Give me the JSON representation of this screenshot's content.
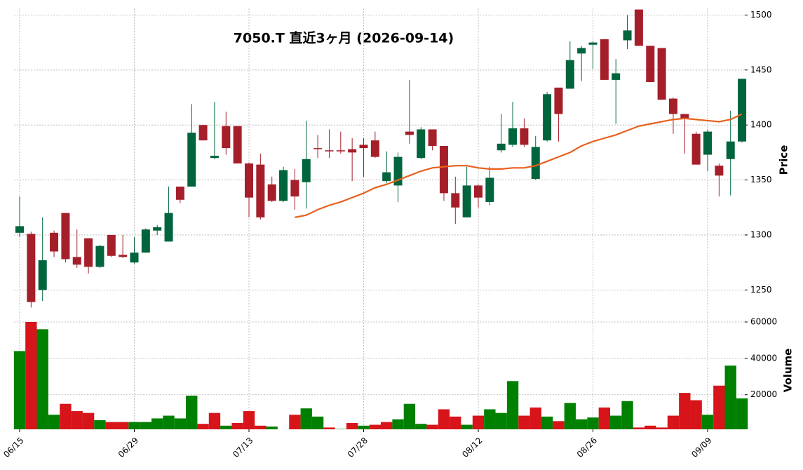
{
  "chart_data": {
    "type": "candlestick",
    "title": "7050.T  直近3ヶ月  (2026-09-14)",
    "ylabel": "Price",
    "y2label": "Volume",
    "categories": [
      "06/15",
      null,
      null,
      null,
      null,
      null,
      null,
      null,
      null,
      null,
      "06/29",
      null,
      null,
      null,
      null,
      null,
      null,
      null,
      null,
      null,
      "07/13",
      null,
      null,
      null,
      null,
      null,
      null,
      null,
      null,
      null,
      "07/28",
      null,
      null,
      null,
      null,
      null,
      null,
      null,
      null,
      null,
      "08/12",
      null,
      null,
      null,
      null,
      null,
      null,
      null,
      null,
      null,
      "08/26",
      null,
      null,
      null,
      null,
      null,
      null,
      null,
      null,
      null,
      "09/09",
      null,
      null,
      null
    ],
    "open": [
      1302,
      1301,
      1250,
      1302,
      1320,
      1280,
      1297,
      1271,
      1300,
      1282,
      1275,
      1284,
      1304,
      1294,
      1344,
      1344,
      1400,
      1370,
      1399,
      1399,
      1365,
      1364,
      1346,
      1331,
      1350,
      1348,
      1379,
      1377,
      1377,
      1378,
      1382,
      1386,
      1349,
      1345,
      1394,
      1370,
      1396,
      1381,
      1338,
      1316,
      1345,
      1330,
      1377,
      1382,
      1397,
      1351,
      1386,
      1434,
      1433,
      1465,
      1473,
      1478,
      1441,
      1477,
      1505,
      1472,
      1470,
      1424,
      1410,
      1392,
      1373,
      1363,
      1369,
      1385
    ],
    "high": [
      1335,
      1303,
      1316,
      1304,
      1320,
      1305,
      1297,
      1291,
      1300,
      1300,
      1298,
      1306,
      1309,
      1344,
      1344,
      1419,
      1400,
      1421,
      1412,
      1399,
      1366,
      1374,
      1353,
      1362,
      1360,
      1404,
      1391,
      1396,
      1394,
      1388,
      1388,
      1394,
      1376,
      1375,
      1441,
      1398,
      1396,
      1381,
      1353,
      1362,
      1346,
      1362,
      1410,
      1421,
      1406,
      1390,
      1430,
      1434,
      1476,
      1472,
      1476,
      1478,
      1460,
      1500,
      1505,
      1472,
      1470,
      1425,
      1410,
      1394,
      1396,
      1365,
      1413,
      1442
    ],
    "low": [
      1298,
      1234,
      1240,
      1280,
      1275,
      1270,
      1265,
      1270,
      1280,
      1279,
      1274,
      1284,
      1300,
      1294,
      1329,
      1344,
      1386,
      1369,
      1373,
      1365,
      1316,
      1314,
      1330,
      1330,
      1323,
      1324,
      1370,
      1370,
      1374,
      1349,
      1353,
      1370,
      1347,
      1330,
      1383,
      1369,
      1377,
      1331,
      1310,
      1316,
      1325,
      1327,
      1375,
      1380,
      1380,
      1350,
      1385,
      1385,
      1433,
      1440,
      1451,
      1441,
      1401,
      1469,
      1472,
      1439,
      1423,
      1392,
      1374,
      1364,
      1358,
      1335,
      1336,
      1384
    ],
    "close": [
      1308,
      1239,
      1277,
      1285,
      1278,
      1273,
      1271,
      1290,
      1281,
      1280,
      1284,
      1305,
      1307,
      1320,
      1332,
      1393,
      1386,
      1372,
      1379,
      1365,
      1334,
      1316,
      1331,
      1359,
      1335,
      1369,
      1378,
      1376,
      1376,
      1375,
      1379,
      1371,
      1357,
      1371,
      1391,
      1396,
      1381,
      1338,
      1325,
      1345,
      1334,
      1352,
      1383,
      1397,
      1382,
      1380,
      1428,
      1410,
      1459,
      1470,
      1475,
      1441,
      1447,
      1486,
      1472,
      1439,
      1423,
      1410,
      1406,
      1364,
      1394,
      1354,
      1385,
      1442
    ],
    "volume": [
      44000,
      60000,
      56000,
      9000,
      15000,
      11000,
      10000,
      6000,
      5000,
      5000,
      5000,
      5000,
      7000,
      8500,
      7000,
      19500,
      4000,
      10000,
      3000,
      4500,
      11000,
      3000,
      2500,
      null,
      9000,
      12500,
      8000,
      2000,
      1200,
      4500,
      3000,
      3500,
      5000,
      6500,
      15000,
      4000,
      3500,
      12000,
      8000,
      3500,
      8500,
      12000,
      10000,
      27500,
      8500,
      13000,
      8000,
      5500,
      15500,
      6500,
      7500,
      13000,
      8500,
      16500,
      2000,
      3000,
      2000,
      8500,
      21000,
      17000,
      9000,
      25000,
      36000,
      18000
    ],
    "ma": {
      "color": "#e8601c",
      "values": [
        null,
        null,
        null,
        null,
        null,
        null,
        null,
        null,
        null,
        null,
        null,
        null,
        null,
        null,
        null,
        null,
        null,
        null,
        null,
        null,
        null,
        null,
        null,
        null,
        1316,
        1318,
        1323,
        1327,
        1330,
        1334,
        1338,
        1343,
        1346,
        1350,
        1354,
        1358,
        1361,
        1362,
        1363,
        1363,
        1361,
        1360,
        1360,
        1361,
        1361,
        1363,
        1367,
        1371,
        1375,
        1381,
        1385,
        1388,
        1391,
        1395,
        1399,
        1401,
        1403,
        1405,
        1406,
        1405,
        1404,
        1403,
        1405,
        1410
      ]
    },
    "up_color": "#00643c",
    "down_color": "#a51f2a",
    "volume_up_color": "#008000",
    "volume_down_color": "#d7141a",
    "ylim": [
      1233,
      1506
    ],
    "yticks": [
      1250,
      1300,
      1350,
      1400,
      1450,
      1500
    ],
    "y2lim": [
      1000,
      65000
    ],
    "y2ticks": [
      20000,
      40000,
      60000
    ],
    "grid": true
  }
}
